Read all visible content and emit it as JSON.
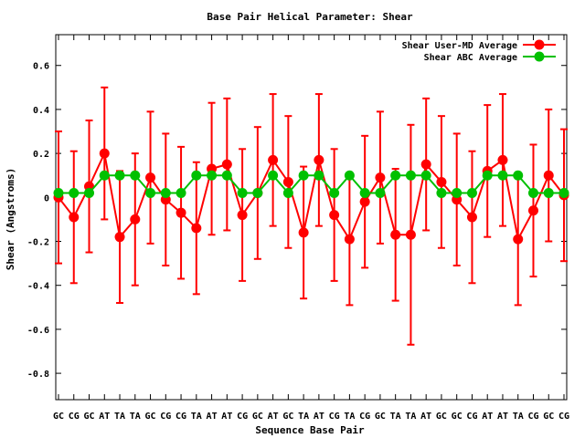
{
  "chart_data": {
    "type": "line",
    "title": "Base Pair Helical Parameter: Shear",
    "xlabel": "Sequence Base Pair",
    "ylabel": "Shear (Angstroms)",
    "ylim": [
      -0.92,
      0.74
    ],
    "yticks": [
      -0.8,
      -0.6,
      -0.4,
      -0.2,
      0,
      0.2,
      0.4,
      0.6
    ],
    "ytick_labels": [
      "-0.8",
      "-0.6",
      "-0.4",
      "-0.2",
      "0",
      "0.2",
      "0.4",
      "0.6"
    ],
    "categories": [
      "GC",
      "CG",
      "GC",
      "AT",
      "TA",
      "TA",
      "GC",
      "CG",
      "CG",
      "TA",
      "AT",
      "AT",
      "CG",
      "GC",
      "AT",
      "GC",
      "TA",
      "AT",
      "CG",
      "TA",
      "CG",
      "GC",
      "TA",
      "TA",
      "AT",
      "GC",
      "GC",
      "CG",
      "AT",
      "AT",
      "TA",
      "CG",
      "GC",
      "CG"
    ],
    "legend_position": "top-right",
    "grid": false,
    "series": [
      {
        "name": "Shear User-MD Average",
        "color": "#ff0000",
        "values": [
          0.0,
          -0.09,
          0.05,
          0.2,
          -0.18,
          -0.1,
          0.09,
          -0.01,
          -0.07,
          -0.14,
          0.13,
          0.15,
          -0.08,
          0.02,
          0.17,
          0.07,
          -0.16,
          0.17,
          -0.08,
          -0.19,
          -0.02,
          0.09,
          -0.17,
          -0.17,
          0.15,
          0.07,
          -0.01,
          -0.09,
          0.12,
          0.17,
          -0.19,
          -0.06,
          0.1,
          0.01
        ],
        "error_lower": [
          -0.3,
          -0.39,
          -0.25,
          -0.1,
          -0.48,
          -0.4,
          -0.21,
          -0.31,
          -0.37,
          -0.44,
          -0.17,
          -0.15,
          -0.38,
          -0.28,
          -0.13,
          -0.23,
          -0.46,
          -0.13,
          -0.38,
          -0.49,
          -0.32,
          -0.21,
          -0.47,
          -0.67,
          -0.15,
          -0.23,
          -0.31,
          -0.39,
          -0.18,
          -0.13,
          -0.49,
          -0.36,
          -0.2,
          -0.29
        ],
        "error_upper": [
          0.3,
          0.21,
          0.35,
          0.5,
          0.12,
          0.2,
          0.39,
          0.29,
          0.23,
          0.16,
          0.43,
          0.45,
          0.22,
          0.32,
          0.47,
          0.37,
          0.14,
          0.47,
          0.22,
          0.11,
          0.28,
          0.39,
          0.13,
          0.33,
          0.45,
          0.37,
          0.29,
          0.21,
          0.42,
          0.47,
          0.11,
          0.24,
          0.4,
          0.31
        ]
      },
      {
        "name": "Shear ABC Average",
        "color": "#00c000",
        "values": [
          0.02,
          0.02,
          0.02,
          0.1,
          0.1,
          0.1,
          0.02,
          0.02,
          0.02,
          0.1,
          0.1,
          0.1,
          0.02,
          0.02,
          0.1,
          0.02,
          0.1,
          0.1,
          0.02,
          0.1,
          0.02,
          0.02,
          0.1,
          0.1,
          0.1,
          0.02,
          0.02,
          0.02,
          0.1,
          0.1,
          0.1,
          0.02,
          0.02,
          0.02
        ]
      }
    ]
  }
}
